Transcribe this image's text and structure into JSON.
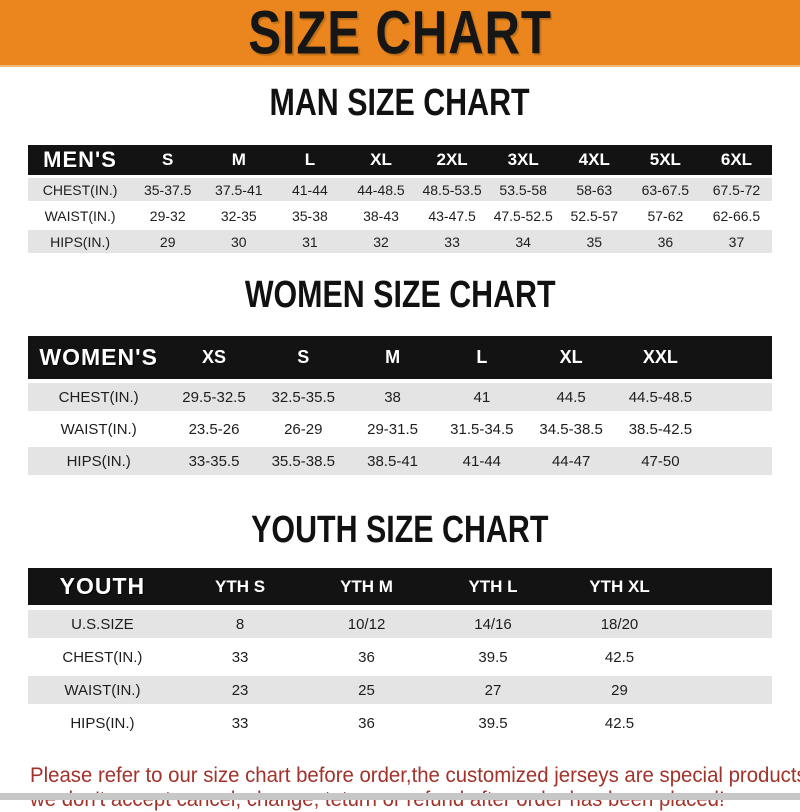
{
  "banner": {
    "title": "SIZE CHART"
  },
  "sections": [
    {
      "id": "men",
      "title": "MAN SIZE CHART",
      "header_label": "MEN'S",
      "columns": [
        "S",
        "M",
        "L",
        "XL",
        "2XL",
        "3XL",
        "4XL",
        "5XL",
        "6XL"
      ],
      "rows": [
        {
          "label": "CHEST(IN.)",
          "values": [
            "35-37.5",
            "37.5-41",
            "41-44",
            "44-48.5",
            "48.5-53.5",
            "53.5-58",
            "58-63",
            "63-67.5",
            "67.5-72"
          ]
        },
        {
          "label": "WAIST(IN.)",
          "values": [
            "29-32",
            "32-35",
            "35-38",
            "38-43",
            "43-47.5",
            "47.5-52.5",
            "52.5-57",
            "57-62",
            "62-66.5"
          ]
        },
        {
          "label": "HIPS(IN.)",
          "values": [
            "29",
            "30",
            "31",
            "32",
            "33",
            "34",
            "35",
            "36",
            "37"
          ]
        }
      ]
    },
    {
      "id": "women",
      "title": "WOMEN SIZE CHART",
      "header_label": "WOMEN'S",
      "columns": [
        "XS",
        "S",
        "M",
        "L",
        "XL",
        "XXL"
      ],
      "rows": [
        {
          "label": "CHEST(IN.)",
          "values": [
            "29.5-32.5",
            "32.5-35.5",
            "38",
            "41",
            "44.5",
            "44.5-48.5"
          ]
        },
        {
          "label": "WAIST(IN.)",
          "values": [
            "23.5-26",
            "26-29",
            "29-31.5",
            "31.5-34.5",
            "34.5-38.5",
            "38.5-42.5"
          ]
        },
        {
          "label": "HIPS(IN.)",
          "values": [
            "33-35.5",
            "35.5-38.5",
            "38.5-41",
            "41-44",
            "44-47",
            "47-50"
          ]
        }
      ]
    },
    {
      "id": "youth",
      "title": "YOUTH SIZE CHART",
      "header_label": "YOUTH",
      "columns": [
        "YTH S",
        "YTH M",
        "YTH L",
        "YTH XL"
      ],
      "rows": [
        {
          "label": "U.S.SIZE",
          "values": [
            "8",
            "10/12",
            "14/16",
            "18/20"
          ]
        },
        {
          "label": "CHEST(IN.)",
          "values": [
            "33",
            "36",
            "39.5",
            "42.5"
          ]
        },
        {
          "label": "WAIST(IN.)",
          "values": [
            "23",
            "25",
            "27",
            "29"
          ]
        },
        {
          "label": "HIPS(IN.)",
          "values": [
            "33",
            "36",
            "39.5",
            "42.5"
          ]
        }
      ]
    }
  ],
  "footer": {
    "line1": "Please refer to our size chart before order,the customized jerseys are special products,",
    "line2": "we don't accept cancel, change, teturn or refund after order has been placed!"
  },
  "colors": {
    "accent_orange": "#EA861D",
    "bar_black": "#131313",
    "row_gray": "#E4E4E4",
    "footer_red": "#A2322A"
  }
}
